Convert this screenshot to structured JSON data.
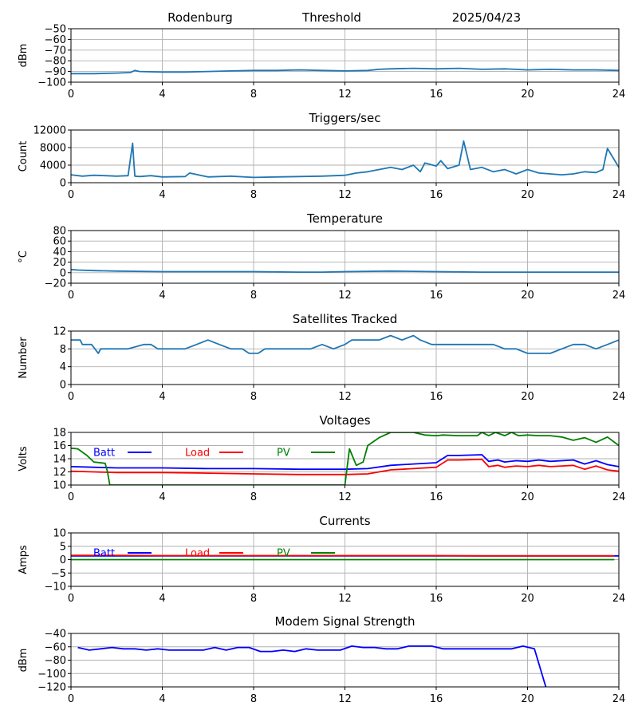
{
  "header": {
    "station": "Rodenburg",
    "panel": "Threshold",
    "date": "2025/04/23"
  },
  "chart_data": [
    {
      "id": "threshold",
      "type": "line",
      "title": "",
      "ylabel": "dBm",
      "ylim": [
        -100,
        -50
      ],
      "yticks": [
        -50,
        -60,
        -70,
        -80,
        -90,
        -100
      ],
      "xlim": [
        0,
        24
      ],
      "xticks": [
        0,
        4,
        8,
        12,
        16,
        20,
        24
      ],
      "grid": true,
      "series": [
        {
          "color": "#1f77b4",
          "x": [
            0,
            1,
            2,
            2.6,
            2.8,
            3,
            4,
            5,
            6,
            7,
            8,
            9,
            10,
            11,
            12,
            13,
            13.5,
            14,
            15,
            16,
            17,
            18,
            19,
            20,
            21,
            22,
            23,
            24
          ],
          "y": [
            -92,
            -92,
            -91.5,
            -91,
            -89,
            -90,
            -90.5,
            -90.5,
            -90,
            -89.5,
            -89,
            -89,
            -88.5,
            -89,
            -89.5,
            -89,
            -88,
            -87.5,
            -87,
            -87.5,
            -87,
            -88,
            -87.5,
            -88.5,
            -88,
            -88.5,
            -88.5,
            -89
          ]
        }
      ]
    },
    {
      "id": "triggers",
      "type": "line",
      "title": "Triggers/sec",
      "ylabel": "Count",
      "ylim": [
        0,
        12000
      ],
      "yticks": [
        0,
        4000,
        8000,
        12000
      ],
      "xlim": [
        0,
        24
      ],
      "xticks": [
        0,
        4,
        8,
        12,
        16,
        20,
        24
      ],
      "grid": true,
      "series": [
        {
          "color": "#1f77b4",
          "x": [
            0,
            0.5,
            1,
            1.5,
            2,
            2.5,
            2.7,
            2.75,
            2.8,
            3,
            3.5,
            4,
            5,
            5.2,
            6,
            7,
            8,
            9,
            10,
            11,
            12,
            12.5,
            13,
            13.5,
            14,
            14.5,
            15,
            15.3,
            15.5,
            16,
            16.2,
            16.5,
            17,
            17.2,
            17.5,
            18,
            18.5,
            19,
            19.5,
            20,
            20.5,
            21,
            21.5,
            22,
            22.5,
            23,
            23.3,
            23.5,
            24
          ],
          "y": [
            1800,
            1500,
            1700,
            1600,
            1500,
            1600,
            9000,
            5000,
            1500,
            1400,
            1600,
            1300,
            1400,
            2200,
            1300,
            1500,
            1200,
            1300,
            1400,
            1500,
            1700,
            2200,
            2500,
            3000,
            3500,
            3000,
            4000,
            2500,
            4500,
            3800,
            5000,
            3200,
            4000,
            9500,
            3000,
            3500,
            2500,
            3000,
            2000,
            3000,
            2200,
            2000,
            1800,
            2000,
            2500,
            2300,
            3000,
            7800,
            3500
          ]
        }
      ]
    },
    {
      "id": "temperature",
      "type": "line",
      "title": "Temperature",
      "ylabel": "°C",
      "ylim": [
        -20,
        80
      ],
      "yticks": [
        -20,
        0,
        20,
        40,
        60,
        80
      ],
      "xlim": [
        0,
        24
      ],
      "xticks": [
        0,
        4,
        8,
        12,
        16,
        20,
        24
      ],
      "grid": true,
      "series": [
        {
          "color": "#1f77b4",
          "x": [
            0,
            0.3,
            1,
            2,
            4,
            6,
            8,
            10,
            11,
            12,
            14,
            16,
            18,
            20,
            22,
            24
          ],
          "y": [
            6,
            5,
            4,
            3,
            2,
            2,
            2,
            1,
            1,
            2,
            3,
            2,
            1,
            1,
            1,
            1
          ]
        }
      ]
    },
    {
      "id": "satellites",
      "type": "line",
      "title": "Satellites Tracked",
      "ylabel": "Number",
      "ylim": [
        0,
        12
      ],
      "yticks": [
        0,
        4,
        8,
        12
      ],
      "xlim": [
        0,
        24
      ],
      "xticks": [
        0,
        4,
        8,
        12,
        16,
        20,
        24
      ],
      "grid": true,
      "series": [
        {
          "color": "#1f77b4",
          "x": [
            0,
            0.4,
            0.5,
            0.9,
            1.2,
            1.3,
            2.5,
            3.2,
            3.5,
            3.8,
            4,
            4.5,
            5,
            5.5,
            6,
            6.5,
            7,
            7.5,
            7.8,
            8.2,
            8.5,
            9,
            10,
            10.5,
            11,
            11.5,
            12,
            12.3,
            13,
            13.5,
            14,
            14.5,
            15,
            15.3,
            15.8,
            16.5,
            17,
            18,
            18.5,
            19,
            19.5,
            20,
            20.5,
            21,
            21.5,
            22,
            22.5,
            23,
            23.5,
            24
          ],
          "y": [
            10,
            10,
            9,
            9,
            7,
            8,
            8,
            9,
            9,
            8,
            8,
            8,
            8,
            9,
            10,
            9,
            8,
            8,
            7,
            7,
            8,
            8,
            8,
            8,
            9,
            8,
            9,
            10,
            10,
            10,
            11,
            10,
            11,
            10,
            9,
            9,
            9,
            9,
            9,
            8,
            8,
            7,
            7,
            7,
            8,
            9,
            9,
            8,
            9,
            10
          ]
        }
      ]
    },
    {
      "id": "voltages",
      "type": "line",
      "title": "Voltages",
      "ylabel": "Volts",
      "ylim": [
        10,
        18
      ],
      "yticks": [
        10,
        12,
        14,
        16,
        18
      ],
      "xlim": [
        0,
        24
      ],
      "xticks": [
        0,
        4,
        8,
        12,
        16,
        20,
        24
      ],
      "grid": true,
      "legend": "top-left",
      "series": [
        {
          "name": "Batt",
          "color": "#0000ff",
          "x": [
            0,
            1,
            2,
            4,
            6,
            8,
            10,
            12,
            13,
            14,
            15,
            16,
            16.5,
            17,
            18,
            18.3,
            18.7,
            19,
            19.5,
            20,
            20.5,
            21,
            21.5,
            22,
            22.5,
            23,
            23.5,
            24
          ],
          "y": [
            12.8,
            12.7,
            12.6,
            12.6,
            12.5,
            12.5,
            12.4,
            12.4,
            12.5,
            13.0,
            13.2,
            13.4,
            14.5,
            14.5,
            14.6,
            13.6,
            13.8,
            13.5,
            13.7,
            13.6,
            13.8,
            13.6,
            13.7,
            13.8,
            13.2,
            13.7,
            13.1,
            12.8
          ]
        },
        {
          "name": "Load",
          "color": "#ff0000",
          "x": [
            0,
            1,
            2,
            4,
            6,
            8,
            10,
            12,
            13,
            14,
            15,
            16,
            16.5,
            17,
            18,
            18.3,
            18.7,
            19,
            19.5,
            20,
            20.5,
            21,
            21.5,
            22,
            22.5,
            23,
            23.5,
            24
          ],
          "y": [
            12.1,
            12.0,
            11.9,
            11.9,
            11.8,
            11.7,
            11.6,
            11.6,
            11.7,
            12.3,
            12.5,
            12.7,
            13.8,
            13.8,
            13.9,
            12.8,
            13.0,
            12.7,
            12.9,
            12.8,
            13.0,
            12.8,
            12.9,
            13.0,
            12.4,
            12.9,
            12.3,
            12.1
          ]
        },
        {
          "name": "PV",
          "color": "#008000",
          "x": [
            0,
            0.3,
            0.7,
            1,
            1.5,
            1.6,
            1.7,
            12.0,
            12.2,
            12.5,
            12.8,
            13,
            13.5,
            14,
            15,
            15.5,
            16,
            16.3,
            17,
            17.8,
            18,
            18.3,
            18.6,
            19,
            19.3,
            19.6,
            20,
            20.5,
            21,
            21.5,
            22,
            22.5,
            23,
            23.5,
            24
          ],
          "y": [
            15.6,
            15.5,
            14.5,
            13.5,
            13.3,
            12,
            10,
            10,
            15.5,
            13.0,
            13.5,
            16,
            17.2,
            18,
            18,
            17.6,
            17.5,
            17.6,
            17.5,
            17.5,
            18,
            17.5,
            18,
            17.5,
            18,
            17.5,
            17.6,
            17.5,
            17.5,
            17.3,
            16.8,
            17.2,
            16.5,
            17.3,
            16
          ]
        }
      ]
    },
    {
      "id": "currents",
      "type": "line",
      "title": "Currents",
      "ylabel": "Amps",
      "ylim": [
        -10,
        10
      ],
      "yticks": [
        -10,
        -5,
        0,
        5,
        10
      ],
      "xlim": [
        0,
        24
      ],
      "xticks": [
        0,
        4,
        8,
        12,
        16,
        20,
        24
      ],
      "grid": true,
      "legend": "top-left",
      "series": [
        {
          "name": "Batt",
          "color": "#0000ff",
          "x": [
            0,
            4,
            8,
            12,
            16,
            20,
            24
          ],
          "y": [
            1.4,
            1.4,
            1.4,
            1.4,
            1.4,
            1.4,
            1.4
          ]
        },
        {
          "name": "Load",
          "color": "#ff0000",
          "x": [
            0,
            2,
            4,
            6,
            8,
            10,
            12,
            14,
            16,
            18,
            20,
            22,
            23.8
          ],
          "y": [
            1.6,
            1.6,
            1.5,
            1.5,
            1.5,
            1.5,
            1.5,
            1.5,
            1.5,
            1.4,
            1.4,
            1.4,
            1.4
          ]
        },
        {
          "name": "PV",
          "color": "#008000",
          "x": [
            0,
            4,
            8,
            12,
            16,
            20,
            23.8
          ],
          "y": [
            0,
            0,
            0,
            0,
            0,
            0,
            0
          ]
        }
      ]
    },
    {
      "id": "modem",
      "type": "line",
      "title": "Modem Signal Strength",
      "ylabel": "dBm",
      "ylim": [
        -120,
        -40
      ],
      "yticks": [
        -40,
        -60,
        -80,
        -100,
        -120
      ],
      "xlim": [
        0,
        24
      ],
      "xticks": [
        0,
        4,
        8,
        12,
        16,
        20,
        24
      ],
      "grid": true,
      "series": [
        {
          "color": "#0000ff",
          "x": [
            0.3,
            0.8,
            1.3,
            1.8,
            2.3,
            2.8,
            3.3,
            3.8,
            4.3,
            4.8,
            5.3,
            5.8,
            6.3,
            6.8,
            7.3,
            7.8,
            8.3,
            8.8,
            9.3,
            9.8,
            10.3,
            10.8,
            11.3,
            11.8,
            12.3,
            12.8,
            13.3,
            13.8,
            14.3,
            14.8,
            15.3,
            15.8,
            16.3,
            16.8,
            17.3,
            17.8,
            18.3,
            18.8,
            19.3,
            19.8,
            20.3,
            20.8
          ],
          "y": [
            -61,
            -65,
            -63,
            -61,
            -63,
            -63,
            -65,
            -63,
            -65,
            -65,
            -65,
            -65,
            -61,
            -65,
            -61,
            -61,
            -67,
            -67,
            -65,
            -67,
            -63,
            -65,
            -65,
            -65,
            -59,
            -61,
            -61,
            -63,
            -63,
            -59,
            -59,
            -59,
            -63,
            -63,
            -63,
            -63,
            -63,
            -63,
            -63,
            -59,
            -63,
            -120
          ]
        }
      ]
    }
  ]
}
